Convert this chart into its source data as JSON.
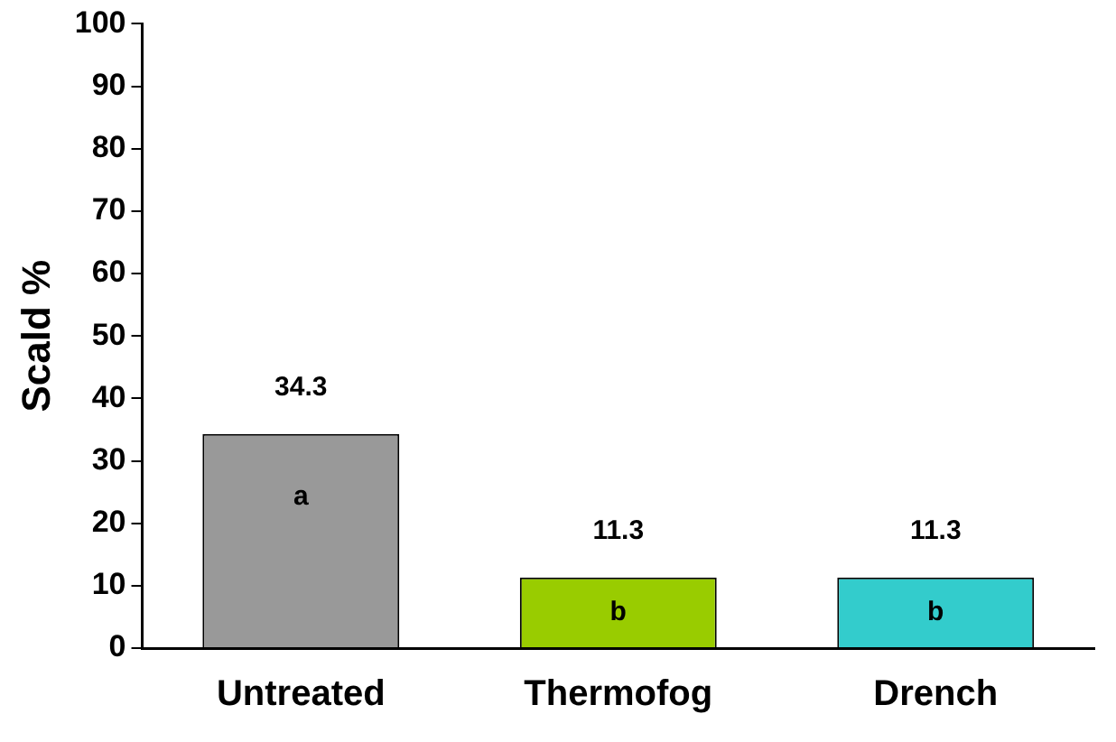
{
  "chart_data": {
    "type": "bar",
    "ylabel": "Scald %",
    "categories": [
      "Untreated",
      "Thermofog",
      "Drench"
    ],
    "values": [
      34.3,
      11.3,
      11.3
    ],
    "colors": [
      "#999999",
      "#99cc00",
      "#33cccc"
    ],
    "ylim": [
      0,
      100
    ],
    "yticks": [
      0,
      10,
      20,
      30,
      40,
      50,
      60,
      70,
      80,
      90,
      100
    ],
    "grid": false,
    "legend": false,
    "data_labels": true,
    "annotations": [
      "a",
      "b",
      "b"
    ]
  }
}
